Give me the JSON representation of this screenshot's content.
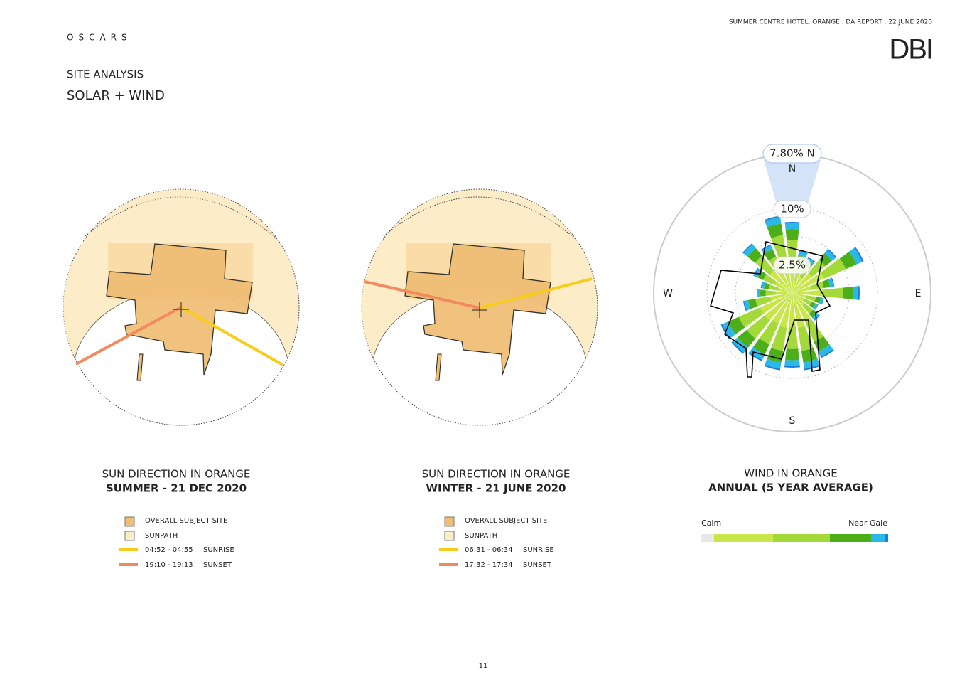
{
  "header": {
    "brand": "OSCARS",
    "report": "SUMMER CENTRE HOTEL, ORANGE . DA REPORT . 22 JUNE 2020",
    "logo": "DBI"
  },
  "section": {
    "title": "SITE ANALYSIS",
    "subtitle": "SOLAR + WIND"
  },
  "panels": [
    {
      "title": "SUN DIRECTION IN ORANGE",
      "subtitle": "SUMMER - 21 DEC 2020",
      "legend": {
        "site": "OVERALL SUBJECT SITE",
        "sunpath": "SUNPATH",
        "sunrise": {
          "time": "04:52 - 04:55",
          "label": "SUNRISE"
        },
        "sunset": {
          "time": "19:10  -  19:13",
          "label": "SUNSET"
        }
      }
    },
    {
      "title": "SUN DIRECTION IN ORANGE",
      "subtitle": "WINTER - 21 JUNE 2020",
      "legend": {
        "site": "OVERALL SUBJECT SITE",
        "sunpath": "SUNPATH",
        "sunrise": {
          "time": "06:31 - 06:34",
          "label": "SUNRISE"
        },
        "sunset": {
          "time": "17:32  - 17:34",
          "label": "SUNSET"
        }
      }
    },
    {
      "title": "WIND IN ORANGE",
      "subtitle": "ANNUAL (5 YEAR AVERAGE)",
      "scale": {
        "low": "Calm",
        "high": "Near Gale"
      },
      "rose": {
        "peak": "7.80% N",
        "ring_outer": "10%",
        "ring_inner": "2.5%",
        "north": "N",
        "east": "E",
        "south": "S",
        "west": "W"
      }
    }
  ],
  "page_number": "11"
}
